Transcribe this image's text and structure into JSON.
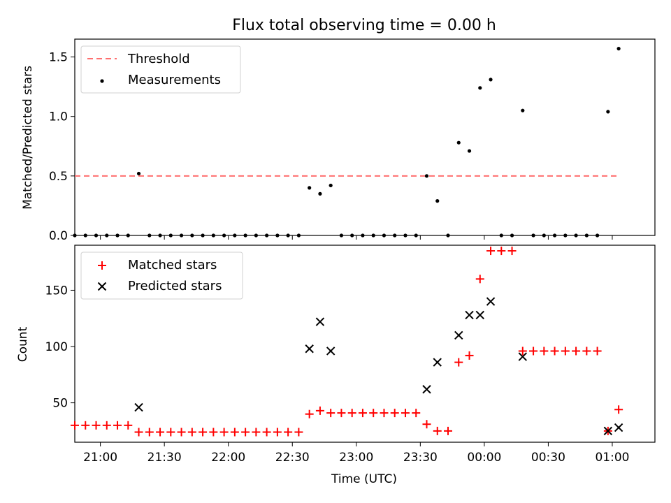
{
  "chart_data": [
    {
      "type": "scatter",
      "title": "Flux total observing time = 0.00 h",
      "ylabel": "Matched/Predicted stars",
      "ylim": [
        0,
        1.65
      ],
      "yticks": [
        0,
        0.5,
        1.0,
        1.5
      ],
      "ytick_labels": [
        "0.0",
        "0.5",
        "1.0",
        "1.5"
      ],
      "legend_position": "top-left",
      "threshold": {
        "name": "Threshold",
        "y": 0.5,
        "x_start": "20:48",
        "x_end": "01:03",
        "color": "#ff6f6f"
      },
      "series": [
        {
          "name": "Measurements",
          "color": "#000000",
          "x": [
            "20:48",
            "20:53",
            "20:58",
            "21:03",
            "21:08",
            "21:13",
            "21:18",
            "21:23",
            "21:28",
            "21:33",
            "21:38",
            "21:43",
            "21:48",
            "21:53",
            "21:58",
            "22:03",
            "22:08",
            "22:13",
            "22:18",
            "22:23",
            "22:28",
            "22:33",
            "22:38",
            "22:43",
            "22:48",
            "22:53",
            "22:58",
            "23:03",
            "23:08",
            "23:13",
            "23:18",
            "23:23",
            "23:28",
            "23:33",
            "23:38",
            "23:43",
            "23:48",
            "23:53",
            "23:58",
            "00:03",
            "00:08",
            "00:13",
            "00:18",
            "00:23",
            "00:28",
            "00:33",
            "00:38",
            "00:43",
            "00:48",
            "00:53",
            "00:58",
            "01:03"
          ],
          "y": [
            0,
            0,
            0,
            0,
            0,
            0,
            0.52,
            0,
            0,
            0,
            0,
            0,
            0,
            0,
            0,
            0,
            0,
            0,
            0,
            0,
            0,
            0,
            0.4,
            0.35,
            0.42,
            0,
            0,
            0,
            0,
            0,
            0,
            0,
            0,
            0.5,
            0.29,
            0,
            0.78,
            0.71,
            1.24,
            1.31,
            0,
            0,
            1.05,
            0,
            0,
            0,
            0,
            0,
            0,
            0,
            1.04,
            1.57
          ]
        }
      ]
    },
    {
      "type": "scatter",
      "xlabel": "Time (UTC)",
      "ylabel": "Count",
      "ylim": [
        15,
        190
      ],
      "yticks": [
        50,
        100,
        150
      ],
      "xticks": [
        "21:00",
        "21:30",
        "22:00",
        "22:30",
        "23:00",
        "23:30",
        "00:00",
        "00:30",
        "01:00"
      ],
      "legend_position": "top-left",
      "series": [
        {
          "name": "Matched stars",
          "marker": "plus",
          "color": "#ff0000",
          "x": [
            "20:48",
            "20:53",
            "20:58",
            "21:03",
            "21:08",
            "21:13",
            "21:18",
            "21:23",
            "21:28",
            "21:33",
            "21:38",
            "21:43",
            "21:48",
            "21:53",
            "21:58",
            "22:03",
            "22:08",
            "22:13",
            "22:18",
            "22:23",
            "22:28",
            "22:33",
            "22:38",
            "22:43",
            "22:48",
            "22:53",
            "22:58",
            "23:03",
            "23:08",
            "23:13",
            "23:18",
            "23:23",
            "23:28",
            "23:33",
            "23:38",
            "23:43",
            "23:48",
            "23:53",
            "23:58",
            "00:03",
            "00:08",
            "00:13",
            "00:18",
            "00:23",
            "00:28",
            "00:33",
            "00:38",
            "00:43",
            "00:48",
            "00:53",
            "00:58",
            "01:03"
          ],
          "y": [
            30,
            30,
            30,
            30,
            30,
            30,
            24,
            24,
            24,
            24,
            24,
            24,
            24,
            24,
            24,
            24,
            24,
            24,
            24,
            24,
            24,
            24,
            40,
            43,
            41,
            41,
            41,
            41,
            41,
            41,
            41,
            41,
            41,
            31,
            25,
            25,
            86,
            92,
            160,
            185,
            185,
            185,
            96,
            96,
            96,
            96,
            96,
            96,
            96,
            96,
            25,
            44
          ]
        },
        {
          "name": "Predicted stars",
          "marker": "x",
          "color": "#000000",
          "x": [
            "21:18",
            "22:38",
            "22:43",
            "22:48",
            "23:33",
            "23:38",
            "23:48",
            "23:53",
            "23:58",
            "00:03",
            "00:18",
            "00:58",
            "01:03"
          ],
          "y": [
            46,
            98,
            122,
            96,
            62,
            86,
            110,
            128,
            128,
            140,
            91,
            25,
            28
          ]
        }
      ]
    }
  ]
}
